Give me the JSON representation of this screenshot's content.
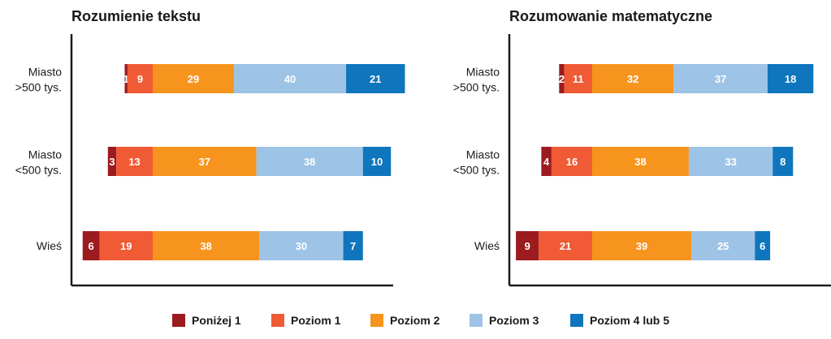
{
  "chart_data": [
    {
      "type": "bar",
      "stacked": true,
      "orientation": "horizontal",
      "title": "Rozumienie tekstu",
      "categories": [
        [
          "Miasto",
          ">500 tys."
        ],
        [
          "Miasto",
          "<500 tys."
        ],
        [
          "Wieś"
        ]
      ],
      "series": [
        {
          "name": "Poniżej 1",
          "values": [
            1,
            3,
            6
          ]
        },
        {
          "name": "Poziom 1",
          "values": [
            9,
            13,
            19
          ]
        },
        {
          "name": "Poziom 2",
          "values": [
            29,
            37,
            38
          ]
        },
        {
          "name": "Poziom 3",
          "values": [
            40,
            38,
            30
          ]
        },
        {
          "name": "Poziom 4 lub 5",
          "values": [
            21,
            10,
            7
          ]
        }
      ],
      "baseline": "Poziom 2 split: below-level segments extend left, Poziom 2 and above extend right",
      "legend": "bottom"
    },
    {
      "type": "bar",
      "stacked": true,
      "orientation": "horizontal",
      "title": "Rozumowanie matematyczne",
      "categories": [
        [
          "Miasto",
          ">500 tys."
        ],
        [
          "Miasto",
          "<500 tys."
        ],
        [
          "Wieś"
        ]
      ],
      "series": [
        {
          "name": "Poniżej 1",
          "values": [
            2,
            4,
            9
          ]
        },
        {
          "name": "Poziom 1",
          "values": [
            11,
            16,
            21
          ]
        },
        {
          "name": "Poziom 2",
          "values": [
            32,
            38,
            39
          ]
        },
        {
          "name": "Poziom 3",
          "values": [
            37,
            33,
            25
          ]
        },
        {
          "name": "Poziom 4 lub 5",
          "values": [
            18,
            8,
            6
          ]
        }
      ],
      "legend": "bottom"
    }
  ],
  "legend": {
    "items": [
      {
        "label": "Poniżej 1",
        "color": "#9b1b1e"
      },
      {
        "label": "Poziom 1",
        "color": "#f05a35"
      },
      {
        "label": "Poziom 2",
        "color": "#f7941d"
      },
      {
        "label": "Poziom 3",
        "color": "#9dc3e6"
      },
      {
        "label": "Poziom 4 lub 5",
        "color": "#0f75bc"
      }
    ]
  }
}
